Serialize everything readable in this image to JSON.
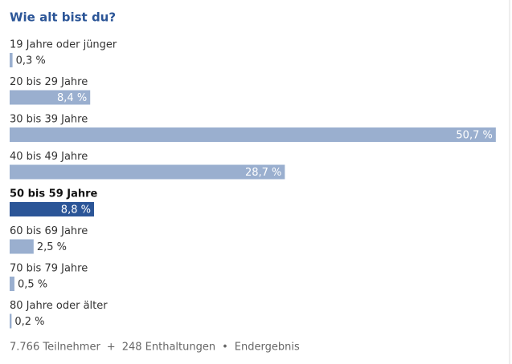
{
  "chart_data": {
    "type": "bar",
    "orientation": "horizontal",
    "title": "Wie alt bist du?",
    "categories": [
      "19 Jahre oder jünger",
      "20 bis 29 Jahre",
      "30 bis 39 Jahre",
      "40 bis 49 Jahre",
      "50 bis 59 Jahre",
      "60 bis 69 Jahre",
      "70 bis 79 Jahre",
      "80 Jahre oder älter"
    ],
    "values": [
      0.3,
      8.4,
      50.7,
      28.7,
      8.8,
      2.5,
      0.5,
      0.2
    ],
    "value_labels": [
      "0,3 %",
      "8,4 %",
      "50,7 %",
      "28,7 %",
      "8,8 %",
      "2,5 %",
      "0,5 %",
      "0,2 %"
    ],
    "color": "#9aafcf",
    "highlight": 4,
    "highlight_color": "#2b5597",
    "footer": [
      "7.766 Teilnehmer",
      "+",
      "248 Enthaltungen",
      "•",
      "Endergebnis"
    ]
  }
}
